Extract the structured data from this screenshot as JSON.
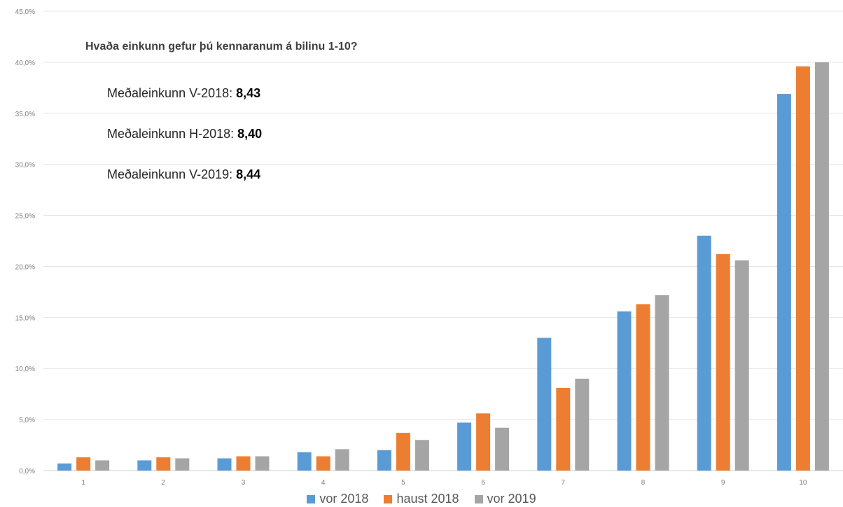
{
  "chart_data": {
    "type": "bar",
    "title": "Hvaða einkunn gefur þú kennaranum á bilinu 1-10?",
    "categories": [
      "1",
      "2",
      "3",
      "4",
      "5",
      "6",
      "7",
      "8",
      "9",
      "10"
    ],
    "series": [
      {
        "name": "vor 2018",
        "color": "#5b9bd5",
        "values": [
          0.7,
          1.0,
          1.2,
          1.8,
          2.0,
          4.7,
          13.0,
          15.6,
          23.0,
          36.9
        ]
      },
      {
        "name": "haust 2018",
        "color": "#ed7d31",
        "values": [
          1.3,
          1.3,
          1.4,
          1.4,
          3.7,
          5.6,
          8.1,
          16.3,
          21.2,
          39.6
        ]
      },
      {
        "name": "vor 2019",
        "color": "#a5a5a5",
        "values": [
          1.0,
          1.2,
          1.4,
          2.1,
          3.0,
          4.2,
          9.0,
          17.2,
          20.6,
          40.0
        ]
      }
    ],
    "yticks": [
      "0,0%",
      "5,0%",
      "10,0%",
      "15,0%",
      "20,0%",
      "25,0%",
      "30,0%",
      "35,0%",
      "40,0%",
      "45,0%"
    ],
    "ylim": [
      0,
      45
    ],
    "grid": true,
    "legend": "bottom",
    "annotations": [
      {
        "label": "Meðaleinkunn V-2018:",
        "value": "8,43"
      },
      {
        "label": "Meðaleinkunn H-2018:",
        "value": "8,40"
      },
      {
        "label": "Meðaleinkunn V-2019:",
        "value": "8,44"
      }
    ]
  }
}
